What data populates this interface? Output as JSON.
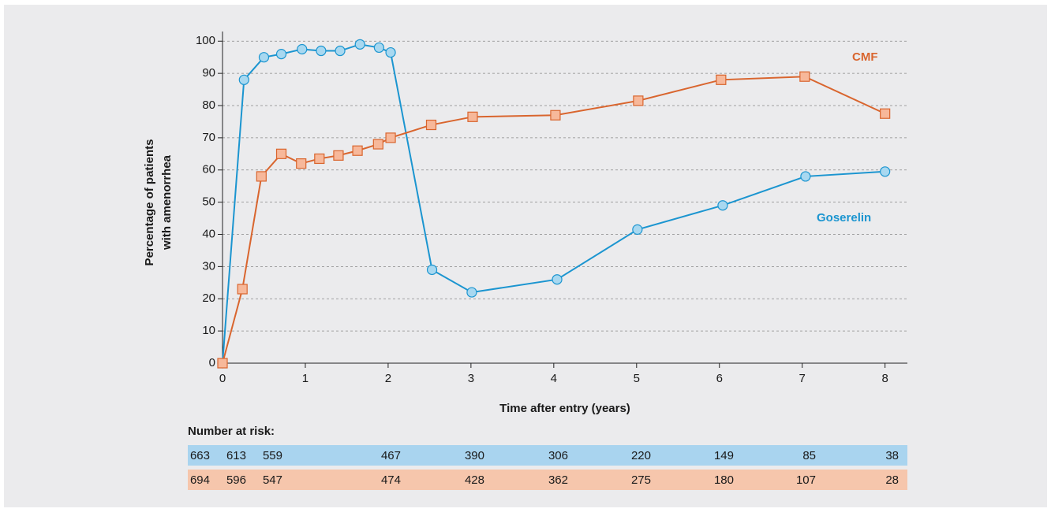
{
  "chart_data": {
    "type": "line",
    "xlabel": "Time after entry (years)",
    "ylabel": [
      "Percentage of patients",
      "with amenorrhea"
    ],
    "xlim": [
      0,
      8.27
    ],
    "ylim": [
      0,
      103
    ],
    "xticks": [
      0,
      1,
      2,
      3,
      4,
      5,
      6,
      7,
      8
    ],
    "yticks": [
      0,
      10,
      20,
      30,
      40,
      50,
      60,
      70,
      80,
      90,
      100
    ],
    "grid": true,
    "series": [
      {
        "name": "Goserelin",
        "color": "#1b95d0",
        "marker": "circle",
        "marker_fill": "#a8d8f0",
        "x": [
          0,
          0.26,
          0.5,
          0.71,
          0.96,
          1.19,
          1.42,
          1.66,
          1.89,
          2.03,
          2.53,
          3.01,
          4.04,
          5.01,
          6.04,
          7.04,
          8
        ],
        "values": [
          0,
          88,
          95,
          96,
          97.5,
          97,
          97,
          99,
          98,
          96.5,
          29,
          22,
          26,
          41.5,
          49,
          58,
          59.5
        ]
      },
      {
        "name": "CMF",
        "color": "#d9652e",
        "marker": "square",
        "marker_fill": "#f7b89a",
        "x": [
          0,
          0.24,
          0.47,
          0.71,
          0.95,
          1.17,
          1.4,
          1.63,
          1.88,
          2.03,
          2.52,
          3.02,
          4.02,
          5.02,
          6.02,
          7.03,
          8
        ],
        "values": [
          0,
          23,
          58,
          65,
          62,
          63.5,
          64.5,
          66,
          68,
          70,
          74,
          76.5,
          77,
          81.5,
          88,
          89,
          77.5
        ]
      }
    ]
  },
  "risk_table": {
    "title": "Number at risk:",
    "row_colors": [
      "#a9d4ef",
      "#f6c6ac"
    ],
    "rows": [
      [
        "663",
        "613",
        "559",
        "467",
        "390",
        "306",
        "220",
        "149",
        "85",
        "38"
      ],
      [
        "694",
        "596",
        "547",
        "474",
        "428",
        "362",
        "275",
        "180",
        "107",
        "28"
      ]
    ]
  }
}
